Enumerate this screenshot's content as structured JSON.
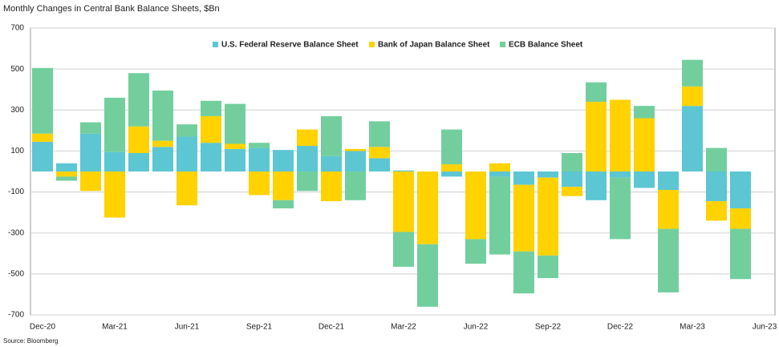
{
  "chart_data": {
    "type": "stacked_bar",
    "title": "Monthly Changes in Central Bank Balance Sheets, $Bn",
    "source": "Source: Bloomberg",
    "categories": [
      "Dec-20",
      null,
      null,
      "Mar-21",
      null,
      null,
      "Jun-21",
      null,
      null,
      "Sep-21",
      null,
      null,
      "Dec-21",
      null,
      null,
      "Mar-22",
      null,
      null,
      "Jun-22",
      null,
      null,
      "Sep-22",
      null,
      null,
      "Dec-22",
      null,
      null,
      "Mar-23",
      null,
      null,
      "Jun-23"
    ],
    "series": [
      {
        "name": "U.S. Federal Reserve Balance Sheet",
        "color": "#5cc6d3",
        "values": [
          145,
          40,
          185,
          95,
          90,
          120,
          170,
          140,
          110,
          115,
          105,
          125,
          75,
          100,
          65,
          5,
          0,
          -25,
          0,
          -25,
          -65,
          -30,
          -75,
          -140,
          -30,
          -80,
          -90,
          320,
          -145,
          -180,
          null
        ]
      },
      {
        "name": "Bank of Japan Balance Sheet",
        "color": "#ffd200",
        "values": [
          40,
          -25,
          -95,
          -225,
          130,
          30,
          -165,
          130,
          25,
          -115,
          -140,
          80,
          -145,
          10,
          55,
          -295,
          -355,
          35,
          -330,
          40,
          -325,
          -380,
          -45,
          340,
          350,
          260,
          -190,
          95,
          -95,
          -100,
          null
        ]
      },
      {
        "name": "ECB Balance Sheet",
        "color": "#72cf9d",
        "values": [
          320,
          -20,
          55,
          265,
          260,
          245,
          60,
          75,
          195,
          25,
          -40,
          -95,
          195,
          -140,
          125,
          -170,
          -305,
          170,
          -120,
          -380,
          -205,
          -110,
          90,
          95,
          -300,
          60,
          -310,
          130,
          115,
          -245,
          null
        ]
      }
    ],
    "ylim": [
      -700,
      700
    ],
    "yticks": [
      -700,
      -500,
      -300,
      -100,
      100,
      300,
      500,
      700
    ],
    "grid": true
  }
}
